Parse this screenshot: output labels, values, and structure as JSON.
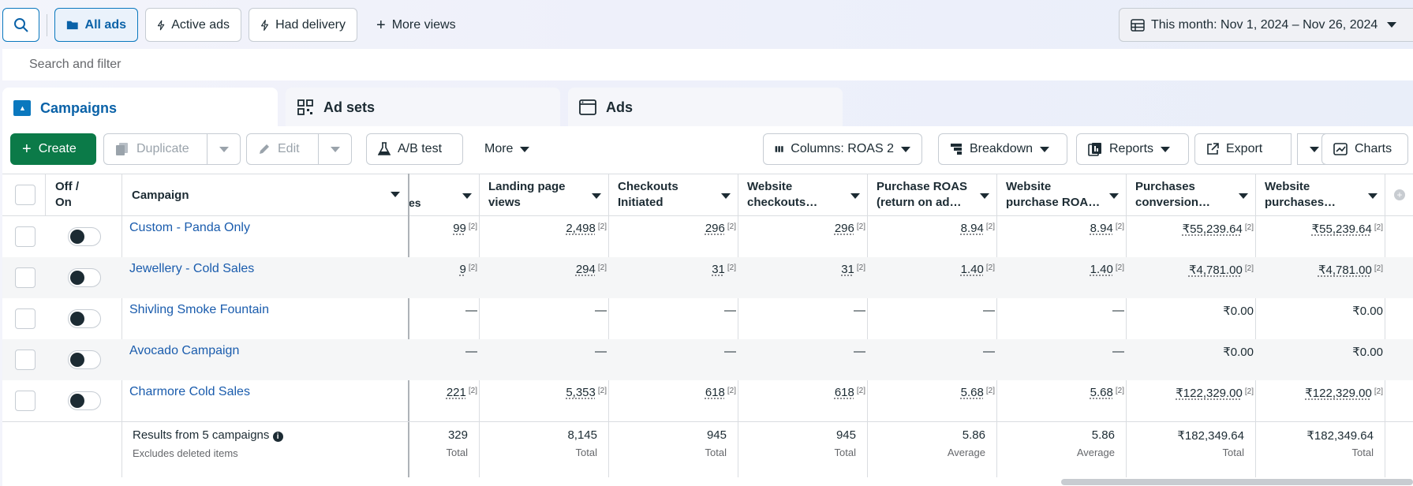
{
  "topbar": {
    "views": [
      {
        "label": "All ads",
        "icon": "folder-icon",
        "selected": true
      },
      {
        "label": "Active ads",
        "icon": "lightning-icon"
      },
      {
        "label": "Had delivery",
        "icon": "lightning-icon"
      },
      {
        "label": "More views",
        "icon": "plus-icon"
      }
    ],
    "date_range": "This month: Nov 1, 2024 – Nov 26, 2024"
  },
  "search": {
    "placeholder": "Search and filter"
  },
  "tabs": [
    {
      "label": "Campaigns",
      "active": true
    },
    {
      "label": "Ad sets"
    },
    {
      "label": "Ads"
    }
  ],
  "toolbar": {
    "create": "Create",
    "duplicate": "Duplicate",
    "edit": "Edit",
    "ab_test": "A/B test",
    "more": "More",
    "columns": "Columns: ROAS 2",
    "breakdown": "Breakdown",
    "reports": "Reports",
    "export": "Export",
    "charts": "Charts"
  },
  "table": {
    "headers": {
      "offon": [
        "Off /",
        "On"
      ],
      "campaign": "Campaign",
      "partial": "es",
      "cols": [
        [
          "Landing page",
          "views"
        ],
        [
          "Checkouts",
          "Initiated"
        ],
        [
          "Website",
          "checkouts…"
        ],
        [
          "Purchase ROAS",
          "(return on ad…"
        ],
        [
          "Website",
          "purchase ROA…"
        ],
        [
          "Purchases",
          "conversion…"
        ],
        [
          "Website",
          "purchases…"
        ]
      ]
    },
    "footnote": "[2]",
    "rows": [
      {
        "name": "Custom - Panda Only",
        "vals": [
          "99",
          "2,498",
          "296",
          "296",
          "8.94",
          "8.94",
          "₹55,239.64",
          "₹55,239.64"
        ],
        "fn": true
      },
      {
        "name": "Jewellery - Cold Sales",
        "vals": [
          "9",
          "294",
          "31",
          "31",
          "1.40",
          "1.40",
          "₹4,781.00",
          "₹4,781.00"
        ],
        "fn": true
      },
      {
        "name": "Shivling Smoke Fountain",
        "vals": [
          "—",
          "—",
          "—",
          "—",
          "—",
          "—",
          "₹0.00",
          "₹0.00"
        ],
        "fn": false
      },
      {
        "name": "Avocado Campaign",
        "vals": [
          "—",
          "—",
          "—",
          "—",
          "—",
          "—",
          "₹0.00",
          "₹0.00"
        ],
        "fn": false
      },
      {
        "name": "Charmore Cold Sales",
        "vals": [
          "221",
          "5,353",
          "618",
          "618",
          "5.68",
          "5.68",
          "₹122,329.00",
          "₹122,329.00"
        ],
        "fn": true
      }
    ],
    "footer": {
      "title": "Results from 5 campaigns",
      "subtitle": "Excludes deleted items",
      "vals": [
        "329",
        "8,145",
        "945",
        "945",
        "5.86",
        "5.86",
        "₹182,349.64",
        "₹182,349.64"
      ],
      "subs": [
        "Total",
        "Total",
        "Total",
        "Total",
        "Average",
        "Average",
        "Total",
        "Total"
      ]
    }
  }
}
